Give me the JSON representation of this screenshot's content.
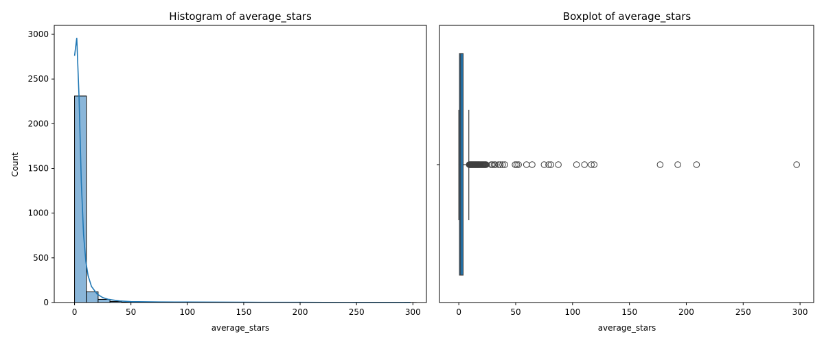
{
  "chart_data": [
    {
      "type": "bar",
      "title": "Histogram of average_stars",
      "xlabel": "average_stars",
      "ylabel": "Count",
      "xlim": [
        -18,
        312
      ],
      "ylim": [
        0,
        3100
      ],
      "xticks": [
        0,
        50,
        100,
        150,
        200,
        250,
        300
      ],
      "yticks": [
        0,
        500,
        1000,
        1500,
        2000,
        2500,
        3000
      ],
      "grid": false,
      "bar_color": "#8ab6d9",
      "bins": [
        {
          "x0": 0,
          "x1": 10.5,
          "count": 2310
        },
        {
          "x0": 10.5,
          "x1": 20.9,
          "count": 120
        },
        {
          "x0": 20.9,
          "x1": 31.4,
          "count": 35
        },
        {
          "x0": 31.4,
          "x1": 41.8,
          "count": 12
        },
        {
          "x0": 41.8,
          "x1": 52.3,
          "count": 5
        },
        {
          "x0": 52.3,
          "x1": 62.7,
          "count": 4
        },
        {
          "x0": 62.7,
          "x1": 73.2,
          "count": 2
        },
        {
          "x0": 73.2,
          "x1": 83.6,
          "count": 3
        },
        {
          "x0": 83.6,
          "x1": 94.1,
          "count": 2
        },
        {
          "x0": 94.1,
          "x1": 104.5,
          "count": 1
        },
        {
          "x0": 104.5,
          "x1": 115,
          "count": 2
        },
        {
          "x0": 115,
          "x1": 125.4,
          "count": 2
        },
        {
          "x0": 125.4,
          "x1": 135.9,
          "count": 0
        },
        {
          "x0": 135.9,
          "x1": 146.3,
          "count": 0
        },
        {
          "x0": 146.3,
          "x1": 156.8,
          "count": 0
        },
        {
          "x0": 156.8,
          "x1": 167.2,
          "count": 0
        },
        {
          "x0": 167.2,
          "x1": 177.7,
          "count": 1
        },
        {
          "x0": 177.7,
          "x1": 188.1,
          "count": 0
        },
        {
          "x0": 188.1,
          "x1": 198.6,
          "count": 1
        },
        {
          "x0": 198.6,
          "x1": 209,
          "count": 1
        },
        {
          "x0": 209,
          "x1": 219.5,
          "count": 0
        },
        {
          "x0": 219.5,
          "x1": 229.9,
          "count": 0
        },
        {
          "x0": 229.9,
          "x1": 240.4,
          "count": 0
        },
        {
          "x0": 240.4,
          "x1": 250.8,
          "count": 0
        },
        {
          "x0": 250.8,
          "x1": 261.3,
          "count": 0
        },
        {
          "x0": 261.3,
          "x1": 271.7,
          "count": 0
        },
        {
          "x0": 271.7,
          "x1": 282.2,
          "count": 0
        },
        {
          "x0": 282.2,
          "x1": 292.6,
          "count": 0
        },
        {
          "x0": 292.6,
          "x1": 303,
          "count": 1
        }
      ],
      "kde": {
        "color": "#1f77b4",
        "x": [
          0,
          2,
          4,
          6,
          8,
          10,
          12,
          15,
          20,
          25,
          30,
          40,
          50,
          75,
          100,
          150,
          200,
          250,
          298
        ],
        "y": [
          2760,
          2960,
          2300,
          1350,
          760,
          460,
          300,
          180,
          95,
          55,
          35,
          18,
          10,
          6,
          5,
          3,
          2,
          1,
          1
        ]
      }
    },
    {
      "type": "boxplot",
      "title": "Boxplot of average_stars",
      "xlabel": "average_stars",
      "ylabel": "",
      "xlim": [
        -17,
        312
      ],
      "xticks": [
        0,
        50,
        100,
        150,
        200,
        250,
        300
      ],
      "box_color": "#1f77b4",
      "whisker_low": 0,
      "q1": 0.6,
      "median": 1.6,
      "q3": 3.8,
      "whisker_high": 8.8,
      "outliers": [
        9.2,
        9.6,
        10,
        10.4,
        10.8,
        11.2,
        11.6,
        12,
        12.4,
        12.8,
        13.2,
        13.6,
        14,
        14.4,
        14.8,
        15.2,
        15.6,
        16,
        16.4,
        16.8,
        17.2,
        17.6,
        18,
        18.5,
        19,
        19.5,
        20,
        20.5,
        21,
        21.5,
        22,
        22.5,
        23,
        23.5,
        24,
        28.5,
        29.5,
        31,
        32,
        35,
        36.5,
        38.5,
        40.5,
        49.5,
        51,
        52.5,
        59.5,
        64.5,
        75,
        79,
        81,
        87.5,
        103.5,
        110.5,
        116.5,
        119,
        177,
        192.5,
        209,
        297
      ]
    }
  ]
}
